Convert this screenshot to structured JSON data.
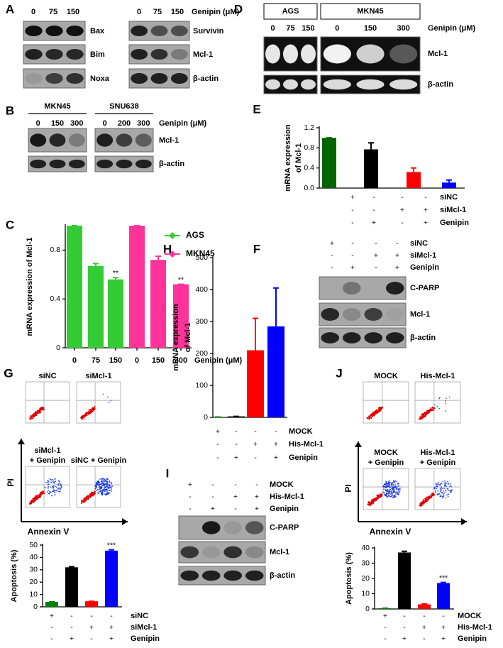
{
  "blots": {
    "A": {
      "label": "A",
      "left_lanes": [
        "0",
        "75",
        "150"
      ],
      "right_lanes": [
        "0",
        "75",
        "150"
      ],
      "unit": "Genipin (μM)",
      "left_rows": [
        "Bax",
        "Bim",
        "Noxa"
      ],
      "right_rows": [
        "Survivin",
        "Mcl-1",
        "β-actin"
      ]
    },
    "B": {
      "label": "B",
      "groups": [
        {
          "name": "MKN45",
          "lanes": [
            "0",
            "150",
            "300"
          ]
        },
        {
          "name": "SNU638",
          "lanes": [
            "0",
            "200",
            "300"
          ]
        }
      ],
      "unit": "Genipin (μM)",
      "rows": [
        "Mcl-1",
        "β-actin"
      ]
    },
    "D": {
      "label": "D",
      "groups": [
        {
          "name": "AGS",
          "lanes": [
            "0",
            "75",
            "150"
          ]
        },
        {
          "name": "MKN45",
          "lanes": [
            "0",
            "150",
            "300"
          ]
        }
      ],
      "unit": "Genipin (μM)",
      "rows": [
        "Mcl-1",
        "β-actin"
      ]
    },
    "F": {
      "label": "F",
      "conditions": [
        {
          "name": "siNC",
          "signs": [
            "+",
            "-",
            "-",
            "-"
          ]
        },
        {
          "name": "siMcl-1",
          "signs": [
            "-",
            "-",
            "+",
            "+"
          ]
        },
        {
          "name": "Genipin",
          "signs": [
            "-",
            "+",
            "-",
            "+"
          ]
        }
      ],
      "rows": [
        "C-PARP",
        "Mcl-1",
        "β-actin"
      ]
    },
    "I": {
      "label": "I",
      "conditions": [
        {
          "name": "MOCK",
          "signs": [
            "+",
            "-",
            "-",
            "-"
          ]
        },
        {
          "name": "His-Mcl-1",
          "signs": [
            "-",
            "-",
            "+",
            "+"
          ]
        },
        {
          "name": "Genipin",
          "signs": [
            "-",
            "+",
            "-",
            "+"
          ]
        }
      ],
      "rows": [
        "C-PARP",
        "Mcl-1",
        "β-actin"
      ]
    }
  },
  "flow": {
    "G": {
      "label": "G",
      "plots": [
        [
          "siNC"
        ],
        [
          "siMcl-1"
        ],
        [
          "siMcl-1",
          "+ Genipin"
        ],
        [
          "siNC + Genipin"
        ]
      ],
      "y_axis": "PI",
      "x_axis": "Annexin V"
    },
    "J": {
      "label": "J",
      "plots": [
        [
          "MOCK"
        ],
        [
          "His-Mcl-1"
        ],
        [
          "MOCK",
          "+ Genipin"
        ],
        [
          "His-Mcl-1",
          "+ Genipin"
        ]
      ],
      "y_axis": "PI",
      "x_axis": "Annexin V"
    }
  },
  "chart_data": [
    {
      "type": "bar",
      "label": "C",
      "ylabel": "mRNA expression of Mcl-1",
      "xlabel": "Genipin (μM)",
      "categories": [
        "0",
        "75",
        "150",
        "0",
        "150",
        "300"
      ],
      "series": [
        {
          "name": "AGS",
          "color": "#33cc33",
          "values": [
            1,
            0.67,
            0.56,
            null,
            null,
            null
          ],
          "errors": [
            0,
            0.02,
            0.015,
            null,
            null,
            null
          ],
          "annotations": [
            null,
            null,
            "**",
            null,
            null,
            null
          ]
        },
        {
          "name": "MKN45",
          "color": "#ff3399",
          "values": [
            null,
            null,
            null,
            1,
            0.72,
            0.52
          ],
          "errors": [
            null,
            null,
            null,
            0,
            0.03,
            0
          ],
          "annotations": [
            null,
            null,
            null,
            null,
            null,
            "**"
          ]
        }
      ],
      "ylim": [
        0,
        1
      ],
      "yticks": [
        0,
        0.4,
        0.8
      ],
      "legend": "upper right"
    },
    {
      "type": "bar",
      "label": "E",
      "ylabel": [
        "mRNA expression",
        "of Mcl-1"
      ],
      "values": [
        1,
        0.77,
        0.32,
        0.11
      ],
      "errors": [
        0,
        0.13,
        0.08,
        0.05
      ],
      "colors": [
        "#006400",
        "#000000",
        "#ff0000",
        "#0000ff"
      ],
      "ylim": [
        0,
        1.2
      ],
      "yticks": [
        {
          "value": 0,
          "label": "0.0"
        },
        0.4,
        0.8,
        1.2
      ],
      "conditions": [
        {
          "name": "siNC",
          "signs": [
            "+",
            "-",
            "-",
            "-"
          ]
        },
        {
          "name": "siMcl-1",
          "signs": [
            "-",
            "-",
            "+",
            "+"
          ]
        },
        {
          "name": "Genipin",
          "signs": [
            "-",
            "+",
            "-",
            "+"
          ]
        }
      ]
    },
    {
      "type": "bar",
      "label": "G",
      "ylabel": "Apoptosis (%)",
      "values": [
        4,
        32,
        4.5,
        45.5
      ],
      "errors": [
        0,
        0.5,
        0,
        0.7
      ],
      "colors": [
        "#008000",
        "#000000",
        "#ff0000",
        "#0000ff"
      ],
      "annotations": [
        null,
        null,
        null,
        "***"
      ],
      "ylim": [
        0,
        50
      ],
      "yticks": [
        0,
        10,
        20,
        30,
        40,
        50
      ],
      "conditions": [
        {
          "name": "siNC",
          "signs": [
            "+",
            "-",
            "-",
            "-"
          ]
        },
        {
          "name": "siMcl-1",
          "signs": [
            "-",
            "-",
            "+",
            "+"
          ]
        },
        {
          "name": "Genipin",
          "signs": [
            "-",
            "+",
            "-",
            "+"
          ]
        }
      ]
    },
    {
      "type": "bar",
      "label": "H",
      "ylabel": [
        "mRNA expression",
        "of Mcl-1"
      ],
      "values": [
        1,
        3,
        210,
        285
      ],
      "errors": [
        0,
        0,
        100,
        120
      ],
      "colors": [
        "#008000",
        "#000000",
        "#ff0000",
        "#0000ff"
      ],
      "ylim": [
        0,
        500
      ],
      "yticks": [
        0,
        100,
        200,
        300,
        400,
        500
      ],
      "conditions": [
        {
          "name": "MOCK",
          "signs": [
            "+",
            "-",
            "-",
            "-"
          ]
        },
        {
          "name": "His-Mcl-1",
          "signs": [
            "-",
            "-",
            "+",
            "+"
          ]
        },
        {
          "name": "Genipin",
          "signs": [
            "-",
            "+",
            "-",
            "+"
          ]
        }
      ]
    },
    {
      "type": "bar",
      "label": "J",
      "ylabel": "Apoptosis (%)",
      "values": [
        0.5,
        37,
        3,
        17
      ],
      "errors": [
        0,
        0.8,
        0.3,
        0.4
      ],
      "colors": [
        "#008000",
        "#000000",
        "#ff0000",
        "#0000ff"
      ],
      "annotations": [
        null,
        null,
        null,
        "***"
      ],
      "ylim": [
        0,
        40
      ],
      "yticks": [
        0,
        10,
        20,
        30,
        40
      ],
      "conditions": [
        {
          "name": "MOCK",
          "signs": [
            "+",
            "-",
            "-",
            "-"
          ]
        },
        {
          "name": "His-Mcl-1",
          "signs": [
            "-",
            "-",
            "+",
            "+"
          ]
        },
        {
          "name": "Genipin",
          "signs": [
            "-",
            "+",
            "-",
            "+"
          ]
        }
      ]
    }
  ]
}
